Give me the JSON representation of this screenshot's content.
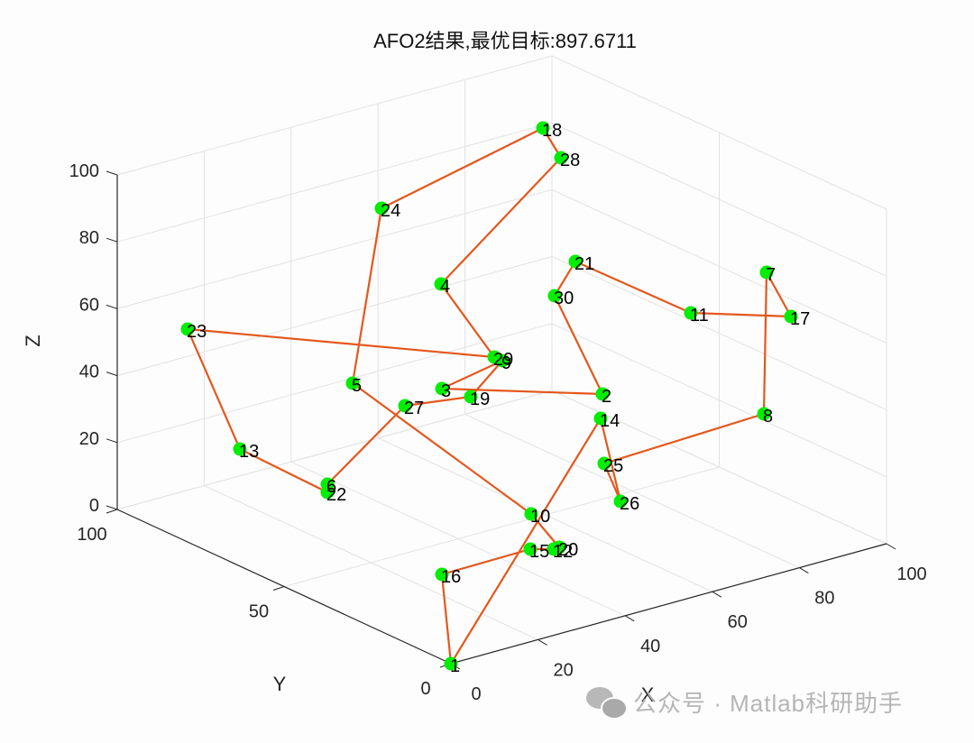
{
  "title": "AFO2结果,最优目标:897.6711",
  "watermark": "公众号 · Matlab科研助手",
  "colors": {
    "route": "#e4571c",
    "marker": "#00ee00",
    "axis": "#262626",
    "grid": "#e2e2e2",
    "label": "#000000"
  },
  "axes": {
    "xlabel": "X",
    "ylabel": "Y",
    "zlabel": "Z",
    "x_ticks": [
      "0",
      "20",
      "40",
      "60",
      "80",
      "100"
    ],
    "y_ticks": [
      "0",
      "50",
      "100"
    ],
    "z_ticks": [
      "0",
      "20",
      "40",
      "60",
      "80",
      "100"
    ]
  },
  "chart_data": {
    "type": "scatter3d-route",
    "title": "AFO2结果,最优目标:897.6711",
    "xlabel": "X",
    "ylabel": "Y",
    "zlabel": "Z",
    "xlim": [
      0,
      100
    ],
    "ylim": [
      0,
      100
    ],
    "zlim": [
      0,
      100
    ],
    "grid": true,
    "best_objective": 897.6711,
    "points": [
      {
        "id": 1,
        "px": [
          500,
          736
        ]
      },
      {
        "id": 2,
        "px": [
          668,
          437
        ]
      },
      {
        "id": 3,
        "px": [
          490,
          431
        ]
      },
      {
        "id": 4,
        "px": [
          489,
          315
        ]
      },
      {
        "id": 5,
        "px": [
          391,
          425
        ]
      },
      {
        "id": 6,
        "px": [
          363,
          537
        ]
      },
      {
        "id": 7,
        "px": [
          850,
          302
        ]
      },
      {
        "id": 8,
        "px": [
          847,
          459
        ]
      },
      {
        "id": 9,
        "px": [
          557,
          400
        ]
      },
      {
        "id": 10,
        "px": [
          589,
          570
        ]
      },
      {
        "id": 11,
        "px": [
          766,
          347
        ]
      },
      {
        "id": 12,
        "px": [
          614,
          609
        ]
      },
      {
        "id": 13,
        "px": [
          266,
          498
        ]
      },
      {
        "id": 14,
        "px": [
          666,
          464
        ]
      },
      {
        "id": 15,
        "px": [
          588,
          609
        ]
      },
      {
        "id": 16,
        "px": [
          490,
          637
        ]
      },
      {
        "id": 17,
        "px": [
          877,
          351
        ]
      },
      {
        "id": 18,
        "px": [
          602,
          142
        ]
      },
      {
        "id": 19,
        "px": [
          522,
          440
        ]
      },
      {
        "id": 20,
        "px": [
          620,
          607
        ]
      },
      {
        "id": 21,
        "px": [
          638,
          290
        ]
      },
      {
        "id": 22,
        "px": [
          363,
          546
        ]
      },
      {
        "id": 23,
        "px": [
          208,
          365
        ]
      },
      {
        "id": 24,
        "px": [
          423,
          231
        ]
      },
      {
        "id": 25,
        "px": [
          670,
          514
        ]
      },
      {
        "id": 26,
        "px": [
          688,
          556
        ]
      },
      {
        "id": 27,
        "px": [
          449,
          450
        ]
      },
      {
        "id": 28,
        "px": [
          622,
          175
        ]
      },
      {
        "id": 29,
        "px": [
          548,
          396
        ]
      },
      {
        "id": 30,
        "px": [
          615,
          328
        ]
      }
    ],
    "route": [
      1,
      16,
      15,
      12,
      20,
      10,
      5,
      24,
      18,
      28,
      4,
      29,
      23,
      13,
      22,
      6,
      27,
      19,
      9,
      3,
      2,
      30,
      21,
      11,
      17,
      7,
      8,
      25,
      26,
      14,
      1
    ]
  }
}
